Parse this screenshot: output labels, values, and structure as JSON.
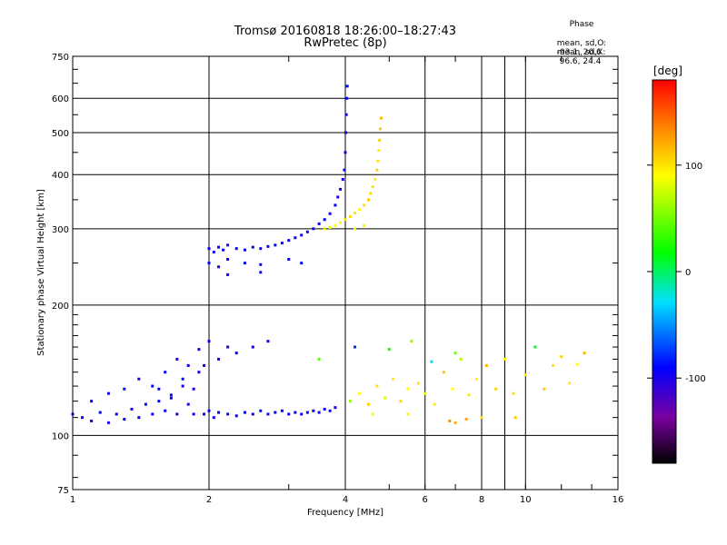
{
  "header": {
    "title": "Tromsø 20160818 18:26:00–18:27:43",
    "subtitle": "RwPretec (8p)"
  },
  "phase_legend": {
    "title": "Phase",
    "stats": [
      {
        "label": "mean, sd,O:",
        "values": "-93.1, 20.6"
      },
      {
        "label": "mean, sd,X:",
        "values": " 96.6, 24.4"
      }
    ]
  },
  "colorbar": {
    "label": "[deg]",
    "ticks": [
      "100",
      "0",
      "-100"
    ],
    "tick_values": [
      100,
      0,
      -100
    ],
    "range": [
      -180,
      180
    ]
  },
  "chart_data": {
    "type": "scatter",
    "xlabel": "Frequency [MHz]",
    "ylabel": "Stationary phase Virtual Height [km]",
    "xscale": "log",
    "yscale": "log",
    "xlim": [
      1,
      16
    ],
    "ylim": [
      75,
      750
    ],
    "x_ticks": [
      1,
      2,
      4,
      6,
      8,
      10,
      16
    ],
    "x_tick_labels": [
      "1",
      "2",
      "4",
      "6",
      "8",
      "10",
      "16"
    ],
    "y_ticks": [
      75,
      100,
      200,
      300,
      400,
      500,
      600,
      750
    ],
    "y_tick_labels": [
      "75",
      "100",
      "200",
      "300",
      "400",
      "500",
      "600",
      "750"
    ],
    "grid": true,
    "colormap": "rainbow",
    "color_by": "phase_deg",
    "series": [
      {
        "points": [
          [
            1.0,
            112,
            -95
          ],
          [
            1.05,
            110,
            -92
          ],
          [
            1.1,
            108,
            -98
          ],
          [
            1.15,
            113,
            -90
          ],
          [
            1.2,
            107,
            -96
          ],
          [
            1.25,
            112,
            -88
          ],
          [
            1.3,
            109,
            -94
          ],
          [
            1.35,
            115,
            -97
          ],
          [
            1.4,
            110,
            -91
          ],
          [
            1.45,
            118,
            -93
          ],
          [
            1.5,
            112,
            -89
          ],
          [
            1.55,
            120,
            -95
          ],
          [
            1.6,
            114,
            -92
          ],
          [
            1.65,
            124,
            -96
          ],
          [
            1.7,
            112,
            -90
          ],
          [
            1.75,
            130,
            -94
          ],
          [
            1.8,
            118,
            -99
          ],
          [
            1.85,
            112,
            -91
          ],
          [
            1.9,
            140,
            -93
          ],
          [
            1.95,
            112,
            -95
          ],
          [
            2.0,
            114,
            -92
          ],
          [
            2.05,
            110,
            -96
          ],
          [
            2.1,
            113,
            -90
          ],
          [
            2.2,
            112,
            -94
          ],
          [
            2.3,
            111,
            -91
          ],
          [
            2.4,
            113,
            -95
          ],
          [
            2.5,
            112,
            -93
          ],
          [
            2.6,
            114,
            -90
          ],
          [
            2.7,
            112,
            -92
          ],
          [
            2.8,
            113,
            -95
          ],
          [
            2.9,
            114,
            -91
          ],
          [
            3.0,
            112,
            -94
          ],
          [
            3.1,
            113,
            -96
          ],
          [
            3.2,
            112,
            -93
          ],
          [
            3.3,
            113,
            -90
          ],
          [
            3.4,
            114,
            -92
          ],
          [
            3.5,
            113,
            -95
          ],
          [
            3.6,
            115,
            -91
          ],
          [
            3.7,
            114,
            -94
          ],
          [
            3.8,
            116,
            -93
          ],
          [
            1.1,
            120,
            -90
          ],
          [
            1.2,
            125,
            -95
          ],
          [
            1.3,
            128,
            -88
          ],
          [
            1.4,
            135,
            -97
          ],
          [
            1.5,
            130,
            -93
          ],
          [
            1.6,
            140,
            -91
          ],
          [
            1.7,
            150,
            -96
          ],
          [
            1.8,
            145,
            -89
          ],
          [
            1.9,
            158,
            -94
          ],
          [
            2.0,
            165,
            -92
          ],
          [
            2.1,
            150,
            -95
          ],
          [
            2.2,
            160,
            -97
          ],
          [
            2.3,
            155,
            -90
          ],
          [
            2.5,
            160,
            -93
          ],
          [
            2.7,
            165,
            -95
          ],
          [
            1.55,
            128,
            -92
          ],
          [
            1.65,
            122,
            -94
          ],
          [
            1.75,
            135,
            -90
          ],
          [
            1.85,
            128,
            -96
          ],
          [
            1.95,
            145,
            -93
          ],
          [
            2.0,
            270,
            -92
          ],
          [
            2.05,
            265,
            -95
          ],
          [
            2.1,
            272,
            -90
          ],
          [
            2.15,
            268,
            -94
          ],
          [
            2.2,
            275,
            -96
          ],
          [
            2.3,
            270,
            -91
          ],
          [
            2.4,
            268,
            -93
          ],
          [
            2.5,
            272,
            -95
          ],
          [
            2.6,
            270,
            -92
          ],
          [
            2.7,
            273,
            -94
          ],
          [
            2.8,
            275,
            -90
          ],
          [
            2.9,
            278,
            -93
          ],
          [
            3.0,
            282,
            -96
          ],
          [
            3.1,
            286,
            -91
          ],
          [
            3.2,
            290,
            -94
          ],
          [
            3.3,
            295,
            -92
          ],
          [
            3.4,
            300,
            -95
          ],
          [
            3.5,
            308,
            -93
          ],
          [
            3.6,
            315,
            -90
          ],
          [
            3.7,
            325,
            -94
          ],
          [
            3.8,
            340,
            -92
          ],
          [
            3.85,
            355,
            -95
          ],
          [
            3.9,
            370,
            -93
          ],
          [
            3.95,
            390,
            -96
          ],
          [
            3.98,
            410,
            -91
          ],
          [
            4.0,
            450,
            -94
          ],
          [
            4.01,
            500,
            -92
          ],
          [
            4.02,
            550,
            -95
          ],
          [
            4.03,
            600,
            -93
          ],
          [
            4.04,
            640,
            -90
          ],
          [
            2.0,
            250,
            -93
          ],
          [
            2.1,
            245,
            -95
          ],
          [
            2.2,
            255,
            -90
          ],
          [
            2.4,
            250,
            -94
          ],
          [
            2.6,
            248,
            -92
          ],
          [
            2.2,
            235,
            -95
          ],
          [
            2.6,
            238,
            -91
          ],
          [
            3.0,
            255,
            -94
          ],
          [
            3.2,
            250,
            -92
          ],
          [
            3.6,
            300,
            80
          ],
          [
            3.7,
            302,
            85
          ],
          [
            3.8,
            305,
            90
          ],
          [
            3.9,
            310,
            95
          ],
          [
            4.0,
            315,
            100
          ],
          [
            4.1,
            320,
            105
          ],
          [
            4.2,
            326,
            98
          ],
          [
            4.3,
            332,
            92
          ],
          [
            4.4,
            340,
            100
          ],
          [
            4.5,
            350,
            110
          ],
          [
            4.55,
            362,
            105
          ],
          [
            4.6,
            375,
            100
          ],
          [
            4.65,
            390,
            95
          ],
          [
            4.7,
            410,
            108
          ],
          [
            4.72,
            430,
            100
          ],
          [
            4.74,
            455,
            95
          ],
          [
            4.76,
            480,
            105
          ],
          [
            4.78,
            510,
            110
          ],
          [
            4.8,
            540,
            115
          ],
          [
            4.2,
            300,
            90
          ],
          [
            4.4,
            305,
            95
          ],
          [
            4.1,
            120,
            60
          ],
          [
            4.3,
            125,
            90
          ],
          [
            4.5,
            118,
            110
          ],
          [
            4.7,
            130,
            100
          ],
          [
            4.9,
            122,
            80
          ],
          [
            5.1,
            135,
            95
          ],
          [
            5.3,
            120,
            105
          ],
          [
            5.5,
            128,
            90
          ],
          [
            5.8,
            132,
            100
          ],
          [
            6.0,
            125,
            85
          ],
          [
            6.3,
            118,
            95
          ],
          [
            6.6,
            140,
            110
          ],
          [
            6.9,
            128,
            90
          ],
          [
            7.2,
            150,
            70
          ],
          [
            7.5,
            124,
            100
          ],
          [
            7.8,
            135,
            95
          ],
          [
            8.2,
            145,
            120
          ],
          [
            8.6,
            128,
            105
          ],
          [
            9.0,
            150,
            90
          ],
          [
            9.4,
            125,
            100
          ],
          [
            10.0,
            138,
            95
          ],
          [
            10.5,
            160,
            15
          ],
          [
            11.0,
            128,
            110
          ],
          [
            11.5,
            145,
            100
          ],
          [
            12.0,
            152,
            105
          ],
          [
            12.5,
            132,
            95
          ],
          [
            13.0,
            146,
            90
          ],
          [
            13.5,
            155,
            115
          ],
          [
            6.8,
            108,
            130
          ],
          [
            7.0,
            107,
            120
          ],
          [
            7.4,
            109,
            125
          ],
          [
            8.0,
            110,
            100
          ],
          [
            9.5,
            110,
            110
          ],
          [
            4.6,
            112,
            85
          ],
          [
            5.5,
            112,
            95
          ],
          [
            3.5,
            150,
            40
          ],
          [
            4.2,
            160,
            -80
          ],
          [
            5.0,
            158,
            20
          ],
          [
            5.6,
            165,
            60
          ],
          [
            6.2,
            148,
            -30
          ],
          [
            7.0,
            155,
            50
          ]
        ]
      }
    ]
  }
}
